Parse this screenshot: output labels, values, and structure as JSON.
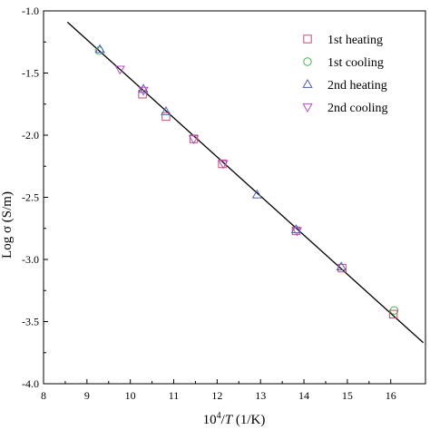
{
  "chart_data": {
    "type": "scatter",
    "xlabel": {
      "base": "10",
      "sup": "4",
      "slash": "/",
      "var": "T",
      "unit": " (1/K)"
    },
    "ylabel": "Log σ (S/m)",
    "xlim": [
      8,
      16.8
    ],
    "ylim": [
      -4.0,
      -1.0
    ],
    "xticks": [
      8,
      9,
      10,
      11,
      12,
      13,
      14,
      15,
      16
    ],
    "yticks": [
      -4.0,
      -3.5,
      -3.0,
      -2.5,
      -2.0,
      -1.5,
      -1.0
    ],
    "xtick_labels": [
      "8",
      "9",
      "10",
      "11",
      "12",
      "13",
      "14",
      "15",
      "16"
    ],
    "ytick_labels": [
      "-4.0",
      "-3.5",
      "-3.0",
      "-2.5",
      "-2.0",
      "-1.5",
      "-1.0"
    ],
    "legend_position": "top-right",
    "fit_line": {
      "x": [
        8.55,
        16.75
      ],
      "y": [
        -1.09,
        -3.67
      ],
      "color": "#000000"
    },
    "series": [
      {
        "name": "1st heating",
        "marker": "square",
        "color": "#c0506e",
        "x": [
          10.28,
          10.82,
          11.46,
          12.12,
          13.82,
          14.88,
          16.06
        ],
        "y": [
          -1.67,
          -1.85,
          -2.03,
          -2.23,
          -2.77,
          -3.07,
          -3.44
        ]
      },
      {
        "name": "1st cooling",
        "marker": "circle",
        "color": "#4caf50",
        "x": [
          9.28,
          16.08
        ],
        "y": [
          -1.32,
          -3.41
        ]
      },
      {
        "name": "2nd heating",
        "marker": "triangle-up",
        "color": "#5060b0",
        "x": [
          9.3,
          10.3,
          10.82,
          12.92,
          13.82,
          14.86
        ],
        "y": [
          -1.31,
          -1.63,
          -1.81,
          -2.48,
          -2.76,
          -3.06
        ]
      },
      {
        "name": "2nd cooling",
        "marker": "triangle-down",
        "color": "#b050c0",
        "x": [
          9.76,
          10.3,
          11.46,
          12.14,
          13.84
        ],
        "y": [
          -1.47,
          -1.64,
          -2.03,
          -2.23,
          -2.77
        ]
      }
    ]
  }
}
